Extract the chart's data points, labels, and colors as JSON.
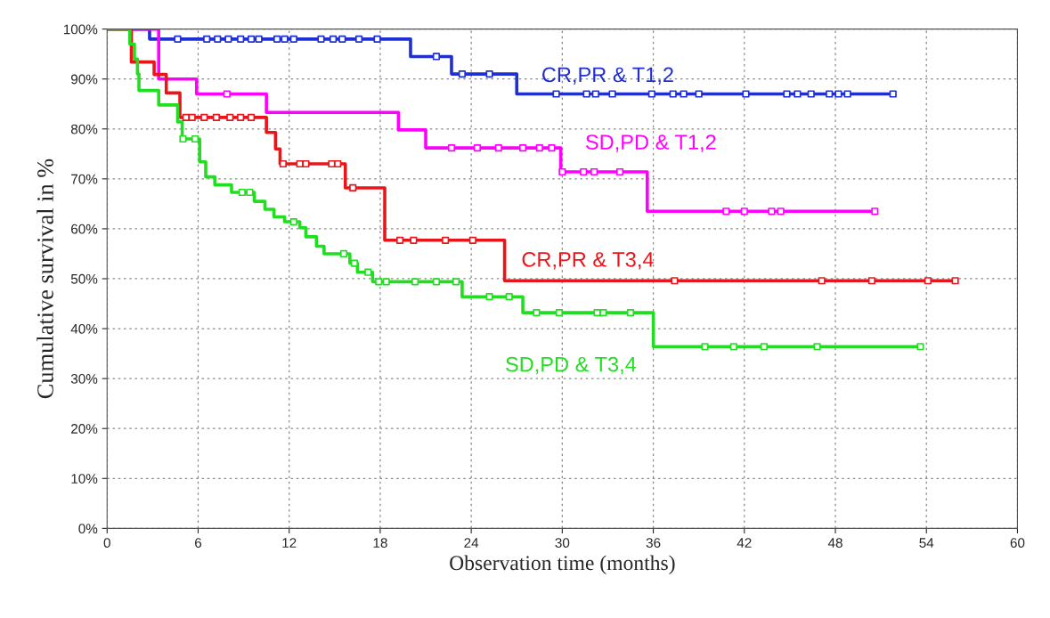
{
  "chart_data": {
    "type": "step",
    "xlabel": "Observation time (months)",
    "ylabel": "Cumulative survival in %",
    "xlim": [
      0,
      60
    ],
    "xticks": [
      0,
      6,
      12,
      18,
      24,
      30,
      36,
      42,
      48,
      54,
      60
    ],
    "ylim": [
      0,
      100
    ],
    "yticks": [
      {
        "value": 0,
        "label": "0%"
      },
      {
        "value": 10,
        "label": "10%"
      },
      {
        "value": 20,
        "label": "20%"
      },
      {
        "value": 30,
        "label": "30%"
      },
      {
        "value": 40,
        "label": "40%"
      },
      {
        "value": 50,
        "label": "50%"
      },
      {
        "value": 60,
        "label": "60%"
      },
      {
        "value": 70,
        "label": "70%"
      },
      {
        "value": 80,
        "label": "80%"
      },
      {
        "value": 90,
        "label": "90%"
      },
      {
        "value": 100,
        "label": "100%"
      }
    ],
    "grid": true,
    "legend": false,
    "line_style": "solid",
    "series": [
      {
        "name": "CR,PR & T1,2",
        "color": "#1f2fd0",
        "x": [
          0,
          2.8,
          20,
          22.7,
          27,
          51.8
        ],
        "values": [
          100,
          98,
          94.5,
          91,
          87,
          87
        ]
      },
      {
        "name": "SD,PD & T1,2",
        "color": "#ff00ff",
        "x": [
          0,
          3.4,
          5.9,
          10.5,
          19.2,
          21,
          29.9,
          35.6,
          50.6
        ],
        "values": [
          100,
          90,
          87,
          83.3,
          79.8,
          76.2,
          71.4,
          63.5,
          63.5
        ]
      },
      {
        "name": "CR,PR & T3,4",
        "color": "#e8161b",
        "x": [
          0,
          1.6,
          3.1,
          3.9,
          4.8,
          10.5,
          11.1,
          11.4,
          15.7,
          18.3,
          26.2,
          55.9
        ],
        "values": [
          100,
          93.4,
          90.9,
          87.2,
          82.3,
          79.3,
          76,
          73,
          68.2,
          57.7,
          49.6,
          49.6
        ]
      },
      {
        "name": "SD,PD & T3,4",
        "color": "#22dd22",
        "x": [
          0,
          1.5,
          1.8,
          2.0,
          2.1,
          3.4,
          4.65,
          4.95,
          6.1,
          6.5,
          7.1,
          8.2,
          9.7,
          10.4,
          11.0,
          11.7,
          12.7,
          13.1,
          13.8,
          14.3,
          16.0,
          16.5,
          17.5,
          23.4,
          27.4,
          36,
          53.6
        ],
        "values": [
          100,
          97,
          94,
          91,
          87.7,
          84.8,
          81.4,
          78,
          73.4,
          70.4,
          68.8,
          67.3,
          65.5,
          63.9,
          62.4,
          61.4,
          60.2,
          58.4,
          56.5,
          55,
          53.1,
          51.3,
          49.4,
          46.4,
          43.2,
          36.4,
          36.4
        ]
      },
      {
        "type": "scatter",
        "marker": "square",
        "color": "#1f2fd0",
        "x": [
          4.65,
          6.57,
          7.28,
          7.99,
          8.8,
          9.5,
          10.0,
          11.2,
          11.7,
          12.3,
          14.1,
          14.9,
          15.5,
          16.6,
          17.8,
          21.7,
          23.4,
          25.2,
          29.6,
          31.6,
          32.2,
          33.3,
          35.9,
          37.3,
          38.0,
          39.0,
          42.1,
          44.8,
          45.5,
          46.4,
          47.6,
          48.2,
          48.8,
          51.8
        ],
        "values": [
          98,
          98,
          98,
          98,
          98,
          98,
          98,
          98,
          98,
          98,
          98,
          98,
          98,
          98,
          98,
          94.5,
          91,
          91,
          87,
          87,
          87,
          87,
          87,
          87,
          87,
          87,
          87,
          87,
          87,
          87,
          87,
          87,
          87,
          87
        ]
      },
      {
        "type": "scatter",
        "marker": "square",
        "color": "#ff00ff",
        "x": [
          7.9,
          22.7,
          24.4,
          25.8,
          27.4,
          28.5,
          29.3,
          30.0,
          31.4,
          32.1,
          33.8,
          40.8,
          42.0,
          43.8,
          44.4,
          50.6
        ],
        "values": [
          87,
          76.2,
          76.2,
          76.2,
          76.2,
          76.2,
          76.2,
          71.4,
          71.4,
          71.4,
          71.4,
          63.5,
          63.5,
          63.5,
          63.5,
          63.5
        ]
      },
      {
        "type": "scatter",
        "marker": "square",
        "color": "#e8161b",
        "x": [
          5.2,
          5.6,
          6.4,
          7.2,
          8.1,
          8.8,
          9.5,
          11.6,
          12.7,
          13.1,
          14.8,
          15.2,
          16.2,
          19.3,
          20.2,
          22.3,
          24.1,
          37.4,
          47.1,
          50.4,
          54.1,
          55.9
        ],
        "values": [
          82.3,
          82.3,
          82.3,
          82.3,
          82.3,
          82.3,
          82.3,
          73,
          73,
          73,
          73,
          73,
          68.2,
          57.7,
          57.7,
          57.7,
          57.7,
          49.6,
          49.6,
          49.6,
          49.6,
          49.6
        ]
      },
      {
        "type": "scatter",
        "marker": "square",
        "color": "#22dd22",
        "x": [
          5.0,
          5.8,
          8.9,
          9.4,
          12.3,
          15.6,
          16.3,
          17.2,
          17.9,
          18.4,
          20.3,
          21.7,
          23.0,
          25.2,
          26.5,
          28.3,
          29.8,
          32.3,
          32.7,
          34.5,
          39.4,
          41.3,
          43.3,
          46.8,
          53.6
        ],
        "values": [
          78,
          78,
          67.3,
          67.3,
          61.4,
          55,
          53.1,
          51.3,
          49.4,
          49.4,
          49.4,
          49.4,
          49.4,
          46.4,
          46.4,
          43.2,
          43.2,
          43.2,
          43.2,
          43.2,
          36.4,
          36.4,
          36.4,
          36.4,
          36.4
        ]
      }
    ]
  }
}
